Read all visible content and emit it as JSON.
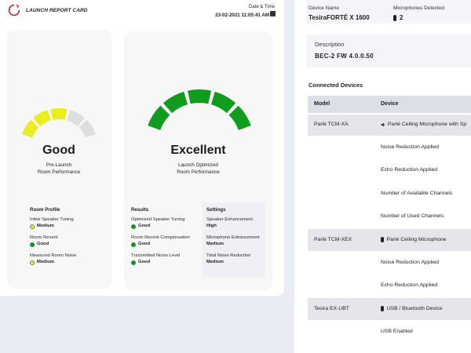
{
  "header": {
    "title": "LAUNCH REPORT CARD",
    "datetime_label": "Date & Time",
    "datetime_value": "23-02-2021 11:05:41 AM"
  },
  "pre_launch": {
    "rating": "Good",
    "subtitle_line1": "Pre-Launch",
    "subtitle_line2": "Room Performance",
    "gauge_segments_active": 3,
    "gauge_segments_total": 5,
    "active_color": "#ecec22",
    "inactive_color": "#dedede",
    "room_profile_title": "Room Profile",
    "room_profile": [
      {
        "label": "Initial Speaker Tuning",
        "value": "Medium",
        "status": "yellow"
      },
      {
        "label": "Room Reverb",
        "value": "Good",
        "status": "green"
      },
      {
        "label": "Measured Room Noise",
        "value": "Medium",
        "status": "yellow"
      }
    ]
  },
  "optimized": {
    "rating": "Excellent",
    "subtitle_line1": "Launch Optimized",
    "subtitle_line2": "Room Performance",
    "gauge_segments_active": 5,
    "gauge_segments_total": 5,
    "active_color": "#129c1d",
    "results_title": "Results",
    "results": [
      {
        "label": "Optimized Speaker Tuning",
        "value": "Good",
        "status": "green"
      },
      {
        "label": "Room Reverb Compensation",
        "value": "Good",
        "status": "green"
      },
      {
        "label": "Transmitted Noise Level",
        "value": "Good",
        "status": "green"
      }
    ],
    "settings_title": "Settings",
    "settings": [
      {
        "label": "Speaker Enhancement",
        "value": "High"
      },
      {
        "label": "Microphone Enhancement",
        "value": "Medium"
      },
      {
        "label": "Total Noise Reduction",
        "value": "Medium"
      }
    ]
  },
  "device": {
    "name_label": "Device Name",
    "name_value": "TesiraFORTÉ X 1600",
    "mics_label": "Microphones Detected",
    "mics_value": "2",
    "description_label": "Description",
    "description_value": "BEC-2 FW 4.0.0.50"
  },
  "connected": {
    "title": "Connected Devices",
    "col_model": "Model",
    "col_device": "Device",
    "rows": [
      {
        "model": "Parlé TCM-XA",
        "device": "Parlé Ceiling Microphone with Sp",
        "icon": "speaker-icon",
        "sub": [
          "Noise Reduction Applied",
          "Echo Reduction Applied",
          "Number of Available Channels",
          "Number of Used Channels"
        ]
      },
      {
        "model": "Parlé TCM-XEX",
        "device": "Parlé Ceiling Microphone",
        "icon": "microphone-icon",
        "sub": [
          "Noise Reduction Applied",
          "Echo Reduction Applied"
        ]
      },
      {
        "model": "Tesira EX-UBT",
        "device": "USB / Bluetooth Device",
        "icon": "microphone-icon",
        "sub": [
          "USB Enabled"
        ]
      }
    ]
  }
}
